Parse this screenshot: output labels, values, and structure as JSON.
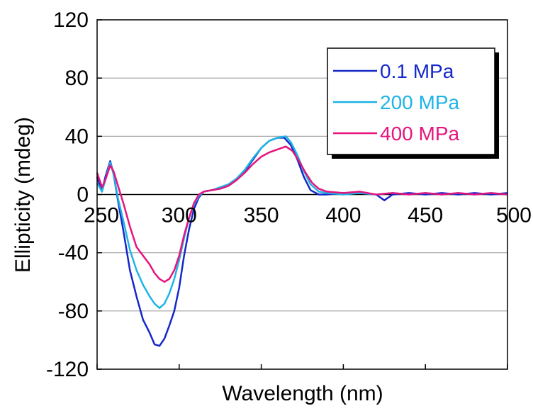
{
  "chart_data": {
    "type": "line",
    "xlabel": "Wavelength (nm)",
    "ylabel": "Ellipticity (mdeg)",
    "xlim": [
      250,
      500
    ],
    "ylim": [
      -120,
      120
    ],
    "x_ticks": [
      "250",
      "300",
      "350",
      "400",
      "450",
      "500"
    ],
    "y_ticks": [
      "120",
      "80",
      "40",
      "0",
      "-40",
      "-80",
      "-120"
    ],
    "grid": "horizontal",
    "legend_position": "top-right",
    "series": [
      {
        "name": "0.1 MPa",
        "color": "#1428c8",
        "points": [
          [
            250,
            12
          ],
          [
            253,
            2
          ],
          [
            255,
            12
          ],
          [
            258,
            23
          ],
          [
            260,
            14
          ],
          [
            263,
            -6
          ],
          [
            266,
            -25
          ],
          [
            270,
            -52
          ],
          [
            274,
            -70
          ],
          [
            278,
            -86
          ],
          [
            282,
            -95
          ],
          [
            285,
            -103
          ],
          [
            288,
            -104
          ],
          [
            291,
            -99
          ],
          [
            294,
            -90
          ],
          [
            297,
            -80
          ],
          [
            300,
            -64
          ],
          [
            303,
            -42
          ],
          [
            306,
            -24
          ],
          [
            309,
            -10
          ],
          [
            312,
            -2
          ],
          [
            315,
            2
          ],
          [
            320,
            3
          ],
          [
            325,
            4
          ],
          [
            330,
            6
          ],
          [
            335,
            10
          ],
          [
            340,
            16
          ],
          [
            345,
            24
          ],
          [
            350,
            32
          ],
          [
            355,
            37
          ],
          [
            360,
            39
          ],
          [
            364,
            39
          ],
          [
            368,
            34
          ],
          [
            372,
            24
          ],
          [
            376,
            12
          ],
          [
            380,
            3
          ],
          [
            385,
            0
          ],
          [
            390,
            0
          ],
          [
            400,
            1
          ],
          [
            410,
            1
          ],
          [
            420,
            0
          ],
          [
            425,
            -4
          ],
          [
            430,
            0
          ],
          [
            440,
            1
          ],
          [
            450,
            0
          ],
          [
            460,
            1
          ],
          [
            470,
            0
          ],
          [
            480,
            1
          ],
          [
            490,
            0
          ],
          [
            500,
            1
          ]
        ]
      },
      {
        "name": "200 MPa",
        "color": "#1eb4e6",
        "points": [
          [
            250,
            8
          ],
          [
            253,
            2
          ],
          [
            255,
            10
          ],
          [
            258,
            22
          ],
          [
            260,
            14
          ],
          [
            263,
            -4
          ],
          [
            266,
            -18
          ],
          [
            270,
            -38
          ],
          [
            274,
            -52
          ],
          [
            278,
            -62
          ],
          [
            282,
            -70
          ],
          [
            285,
            -75
          ],
          [
            288,
            -78
          ],
          [
            291,
            -75
          ],
          [
            294,
            -68
          ],
          [
            297,
            -58
          ],
          [
            300,
            -45
          ],
          [
            303,
            -30
          ],
          [
            306,
            -16
          ],
          [
            309,
            -7
          ],
          [
            312,
            -1
          ],
          [
            315,
            2
          ],
          [
            320,
            3
          ],
          [
            325,
            5
          ],
          [
            330,
            7
          ],
          [
            335,
            11
          ],
          [
            340,
            17
          ],
          [
            345,
            25
          ],
          [
            350,
            32
          ],
          [
            355,
            37
          ],
          [
            360,
            39
          ],
          [
            365,
            40
          ],
          [
            368,
            36
          ],
          [
            372,
            27
          ],
          [
            376,
            16
          ],
          [
            380,
            7
          ],
          [
            385,
            2
          ],
          [
            390,
            1
          ],
          [
            400,
            0
          ],
          [
            410,
            1
          ],
          [
            420,
            0
          ],
          [
            430,
            1
          ],
          [
            440,
            0
          ],
          [
            450,
            1
          ],
          [
            460,
            0
          ],
          [
            470,
            1
          ],
          [
            480,
            0
          ],
          [
            490,
            1
          ],
          [
            500,
            0
          ]
        ]
      },
      {
        "name": "400 MPa",
        "color": "#e6147d",
        "points": [
          [
            250,
            15
          ],
          [
            253,
            5
          ],
          [
            255,
            10
          ],
          [
            258,
            20
          ],
          [
            260,
            16
          ],
          [
            263,
            5
          ],
          [
            266,
            -6
          ],
          [
            270,
            -22
          ],
          [
            274,
            -36
          ],
          [
            278,
            -42
          ],
          [
            282,
            -48
          ],
          [
            285,
            -54
          ],
          [
            288,
            -58
          ],
          [
            291,
            -60
          ],
          [
            294,
            -58
          ],
          [
            297,
            -52
          ],
          [
            300,
            -42
          ],
          [
            303,
            -28
          ],
          [
            306,
            -16
          ],
          [
            309,
            -6
          ],
          [
            312,
            0
          ],
          [
            315,
            2
          ],
          [
            320,
            3
          ],
          [
            325,
            4
          ],
          [
            330,
            6
          ],
          [
            335,
            10
          ],
          [
            340,
            15
          ],
          [
            345,
            21
          ],
          [
            350,
            26
          ],
          [
            355,
            29
          ],
          [
            360,
            31
          ],
          [
            365,
            33
          ],
          [
            369,
            30
          ],
          [
            373,
            23
          ],
          [
            377,
            15
          ],
          [
            381,
            8
          ],
          [
            385,
            4
          ],
          [
            390,
            2
          ],
          [
            400,
            1
          ],
          [
            410,
            2
          ],
          [
            420,
            0
          ],
          [
            430,
            1
          ],
          [
            440,
            0
          ],
          [
            450,
            1
          ],
          [
            460,
            0
          ],
          [
            470,
            1
          ],
          [
            480,
            0
          ],
          [
            490,
            1
          ],
          [
            500,
            0
          ]
        ]
      }
    ]
  }
}
